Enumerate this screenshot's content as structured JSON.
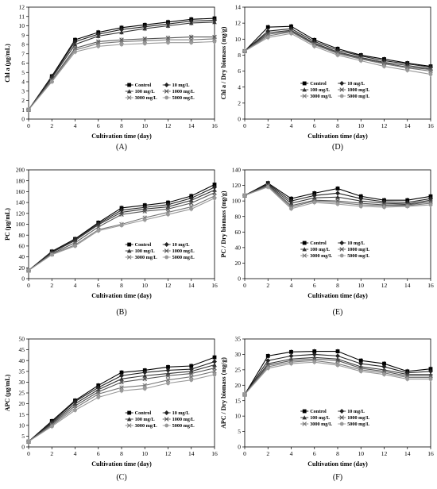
{
  "chart_data": [
    {
      "type": "line",
      "panel_label": "(A)",
      "xlabel": "Cultivation time (day)",
      "ylabel": "Chl a (μg/mL)",
      "x": [
        0,
        2,
        4,
        6,
        8,
        10,
        12,
        14,
        16
      ],
      "xticks": [
        0,
        2,
        4,
        6,
        8,
        10,
        12,
        14,
        16
      ],
      "ylim": [
        0,
        12
      ],
      "yticks": [
        0,
        1,
        2,
        3,
        4,
        5,
        6,
        7,
        8,
        9,
        10,
        11,
        12
      ],
      "legend_position": "bottom-right",
      "series": [
        {
          "name": "Control",
          "marker": "square",
          "values": [
            1.0,
            4.6,
            8.5,
            9.3,
            9.8,
            10.1,
            10.4,
            10.7,
            10.8
          ]
        },
        {
          "name": "10 mg/L",
          "marker": "diamond",
          "values": [
            1.0,
            4.5,
            8.3,
            9.1,
            9.6,
            9.9,
            10.2,
            10.5,
            10.6
          ]
        },
        {
          "name": "100 mg/L",
          "marker": "triangle",
          "values": [
            1.0,
            4.4,
            8.0,
            8.9,
            9.3,
            9.7,
            10.0,
            10.3,
            10.4
          ]
        },
        {
          "name": "1000 mg/L",
          "marker": "x",
          "values": [
            1.0,
            4.2,
            7.6,
            8.3,
            8.5,
            8.6,
            8.7,
            8.8,
            8.8
          ]
        },
        {
          "name": "3000 mg/L",
          "marker": "x",
          "values": [
            1.0,
            4.1,
            7.4,
            8.1,
            8.3,
            8.4,
            8.5,
            8.5,
            8.6
          ]
        },
        {
          "name": "5000 mg/L",
          "marker": "circle",
          "values": [
            1.0,
            4.0,
            7.2,
            7.8,
            8.0,
            8.1,
            8.2,
            8.2,
            8.3
          ]
        }
      ]
    },
    {
      "type": "line",
      "panel_label": "(D)",
      "xlabel": "Cultivation time (day)",
      "ylabel": "Chl a / Dry biomass (mg/g)",
      "x": [
        0,
        2,
        4,
        6,
        8,
        10,
        12,
        14,
        16
      ],
      "xticks": [
        0,
        2,
        4,
        6,
        8,
        10,
        12,
        14,
        16
      ],
      "ylim": [
        0,
        14
      ],
      "yticks": [
        0,
        2,
        4,
        6,
        8,
        10,
        12,
        14
      ],
      "legend_position": "bottom-center",
      "series": [
        {
          "name": "Control",
          "marker": "square",
          "values": [
            8.5,
            11.5,
            11.6,
            9.9,
            8.8,
            8.0,
            7.5,
            7.0,
            6.6
          ]
        },
        {
          "name": "10 mg/L",
          "marker": "diamond",
          "values": [
            8.5,
            11.0,
            11.3,
            9.7,
            8.6,
            7.9,
            7.3,
            6.9,
            6.5
          ]
        },
        {
          "name": "100 mg/L",
          "marker": "triangle",
          "values": [
            8.5,
            10.8,
            11.1,
            9.5,
            8.4,
            7.7,
            7.1,
            6.7,
            6.3
          ]
        },
        {
          "name": "1000 mg/L",
          "marker": "x",
          "values": [
            8.5,
            10.6,
            11.0,
            9.4,
            8.3,
            7.6,
            7.0,
            6.5,
            6.2
          ]
        },
        {
          "name": "3000 mg/L",
          "marker": "x",
          "values": [
            8.5,
            10.4,
            10.9,
            9.3,
            8.2,
            7.5,
            6.9,
            6.4,
            6.0
          ]
        },
        {
          "name": "5000 mg/L",
          "marker": "circle",
          "values": [
            8.5,
            10.2,
            10.7,
            9.1,
            8.0,
            7.3,
            6.6,
            6.1,
            5.6
          ]
        }
      ]
    },
    {
      "type": "line",
      "panel_label": "(B)",
      "xlabel": "Cultivation time (day)",
      "ylabel": "PC (μg/mL)",
      "x": [
        0,
        2,
        4,
        6,
        8,
        10,
        12,
        14,
        16
      ],
      "xticks": [
        0,
        2,
        4,
        6,
        8,
        10,
        12,
        14,
        16
      ],
      "ylim": [
        0,
        200
      ],
      "yticks": [
        0,
        20,
        40,
        60,
        80,
        100,
        120,
        140,
        160,
        180,
        200
      ],
      "legend_position": "bottom-right",
      "series": [
        {
          "name": "Control",
          "marker": "square",
          "values": [
            15,
            50,
            73,
            103,
            130,
            135,
            140,
            152,
            173
          ]
        },
        {
          "name": "10 mg/L",
          "marker": "diamond",
          "values": [
            15,
            49,
            72,
            101,
            126,
            131,
            136,
            148,
            168
          ]
        },
        {
          "name": "100 mg/L",
          "marker": "triangle",
          "values": [
            15,
            48,
            70,
            99,
            122,
            128,
            132,
            144,
            163
          ]
        },
        {
          "name": "1000 mg/L",
          "marker": "x",
          "values": [
            15,
            46,
            66,
            95,
            118,
            124,
            128,
            139,
            158
          ]
        },
        {
          "name": "3000 mg/L",
          "marker": "x",
          "values": [
            15,
            45,
            62,
            90,
            100,
            112,
            122,
            132,
            152
          ]
        },
        {
          "name": "5000 mg/L",
          "marker": "circle",
          "values": [
            15,
            44,
            60,
            88,
            98,
            108,
            118,
            128,
            148
          ]
        }
      ]
    },
    {
      "type": "line",
      "panel_label": "(E)",
      "xlabel": "Cultivation time (day)",
      "ylabel": "PC / Dry biomass (mg/g)",
      "x": [
        0,
        2,
        4,
        6,
        8,
        10,
        12,
        14,
        16
      ],
      "xticks": [
        0,
        2,
        4,
        6,
        8,
        10,
        12,
        14,
        16
      ],
      "ylim": [
        0,
        140
      ],
      "yticks": [
        0,
        20,
        40,
        60,
        80,
        100,
        120,
        140
      ],
      "legend_position": "bottom-center",
      "series": [
        {
          "name": "Control",
          "marker": "square",
          "values": [
            107,
            123,
            103,
            110,
            116,
            106,
            101,
            101,
            106
          ]
        },
        {
          "name": "10 mg/L",
          "marker": "diamond",
          "values": [
            107,
            122,
            100,
            107,
            110,
            103,
            99,
            98,
            103
          ]
        },
        {
          "name": "100 mg/L",
          "marker": "triangle",
          "values": [
            107,
            121,
            97,
            104,
            105,
            100,
            97,
            96,
            101
          ]
        },
        {
          "name": "1000 mg/L",
          "marker": "x",
          "values": [
            107,
            120,
            94,
            101,
            100,
            97,
            95,
            95,
            99
          ]
        },
        {
          "name": "3000 mg/L",
          "marker": "x",
          "values": [
            107,
            119,
            92,
            100,
            98,
            95,
            94,
            94,
            97
          ]
        },
        {
          "name": "5000 mg/L",
          "marker": "circle",
          "values": [
            107,
            118,
            90,
            98,
            96,
            93,
            92,
            93,
            95
          ]
        }
      ]
    },
    {
      "type": "line",
      "panel_label": "(C)",
      "xlabel": "Cultivation time (day)",
      "ylabel": "APC (μg/mL)",
      "x": [
        0,
        2,
        4,
        6,
        8,
        10,
        12,
        14,
        16
      ],
      "xticks": [
        0,
        2,
        4,
        6,
        8,
        10,
        12,
        14,
        16
      ],
      "ylim": [
        0,
        50
      ],
      "yticks": [
        0,
        5,
        10,
        15,
        20,
        25,
        30,
        35,
        40,
        45,
        50
      ],
      "legend_position": "bottom-right",
      "series": [
        {
          "name": "Control",
          "marker": "square",
          "values": [
            2.5,
            12,
            21.5,
            28.5,
            34.5,
            35.5,
            37,
            37.5,
            41.5
          ]
        },
        {
          "name": "10 mg/L",
          "marker": "diamond",
          "values": [
            2.5,
            11.5,
            21,
            27.5,
            33,
            34.5,
            35.5,
            36,
            39.5
          ]
        },
        {
          "name": "100 mg/L",
          "marker": "triangle",
          "values": [
            2.5,
            11,
            20,
            26.5,
            31.5,
            33,
            34,
            35,
            38
          ]
        },
        {
          "name": "1000 mg/L",
          "marker": "x",
          "values": [
            2.5,
            10.5,
            19,
            25.5,
            30,
            31.5,
            33,
            34,
            36.5
          ]
        },
        {
          "name": "3000 mg/L",
          "marker": "x",
          "values": [
            2.5,
            10,
            18,
            24.5,
            27.5,
            28.5,
            31,
            32.5,
            35
          ]
        },
        {
          "name": "5000 mg/L",
          "marker": "circle",
          "values": [
            2.5,
            9.5,
            17,
            23,
            26,
            27,
            29.5,
            31,
            33.5
          ]
        }
      ]
    },
    {
      "type": "line",
      "panel_label": "(F)",
      "xlabel": "Cultivation time (day)",
      "ylabel": "APC / Dry biomass (mg/g)",
      "x": [
        0,
        2,
        4,
        6,
        8,
        10,
        12,
        14,
        16
      ],
      "xticks": [
        0,
        2,
        4,
        6,
        8,
        10,
        12,
        14,
        16
      ],
      "ylim": [
        0,
        35
      ],
      "yticks": [
        0,
        5,
        10,
        15,
        20,
        25,
        30,
        35
      ],
      "legend_position": "bottom-center",
      "series": [
        {
          "name": "Control",
          "marker": "square",
          "values": [
            17,
            29.5,
            30.8,
            31,
            31,
            28,
            27,
            24.5,
            25.3
          ]
        },
        {
          "name": "10 mg/L",
          "marker": "diamond",
          "values": [
            17,
            28,
            29.5,
            30,
            29.5,
            27,
            26,
            24,
            24.5
          ]
        },
        {
          "name": "100 mg/L",
          "marker": "triangle",
          "values": [
            17,
            27,
            28.5,
            29,
            28.5,
            26,
            25,
            23.5,
            23.5
          ]
        },
        {
          "name": "1000 mg/L",
          "marker": "x",
          "values": [
            17,
            26.5,
            28,
            28.5,
            28,
            25.5,
            24.5,
            23,
            23
          ]
        },
        {
          "name": "3000 mg/L",
          "marker": "x",
          "values": [
            17,
            26,
            27.5,
            28,
            27,
            25,
            24,
            22.5,
            22.5
          ]
        },
        {
          "name": "5000 mg/L",
          "marker": "circle",
          "values": [
            17,
            25.5,
            27,
            27.5,
            26.5,
            24.5,
            23.5,
            22,
            22
          ]
        }
      ]
    }
  ]
}
